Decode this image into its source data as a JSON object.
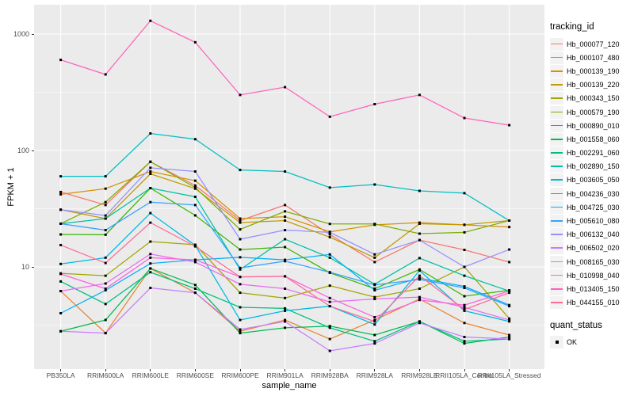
{
  "chart_data": {
    "type": "line",
    "title": "",
    "xlabel": "sample_name",
    "ylabel": "FPKM + 1",
    "y_scale": "log10",
    "ylim": [
      1.32,
      1780
    ],
    "y_ticks": [
      10,
      100,
      1000
    ],
    "y_minor_gridlines": [
      3.162,
      31.623,
      316.23
    ],
    "grid": "major-and-minor-white-on-gray",
    "legend_position": "right",
    "panel_bg": "#EBEBEB",
    "grid_color": "#FFFFFF",
    "point_shape": "small-black-square",
    "point_color": "#000000",
    "categories": [
      "PB350LA",
      "RRIM600LA",
      "RRIM600LE",
      "RRIM600SE",
      "RRIM600PE",
      "RRIM901LA",
      "RRIM928BA",
      "RRIM928LA",
      "RRIM928LE",
      "RRII105LA_Control",
      "RRII105LA_Stressed"
    ],
    "legend_title": "tracking_id",
    "point_legend_title": "quant_status",
    "point_legend_label": "OK",
    "values_note": "FPKM+1, approximate readings from log axis",
    "series": [
      {
        "name": "Hb_000077_120",
        "color": "#F8766D",
        "values": [
          44,
          34,
          80,
          50,
          25,
          34,
          19,
          11,
          17,
          14,
          11
        ]
      },
      {
        "name": "Hb_000107_480",
        "color": "#EA8331",
        "values": [
          6.2,
          2.7,
          9.7,
          6.0,
          2.8,
          3.5,
          2.4,
          3.5,
          5.3,
          3.3,
          2.6
        ]
      },
      {
        "name": "Hb_000139_190",
        "color": "#D89000",
        "values": [
          42,
          47,
          66,
          55,
          26,
          27,
          20,
          23,
          24,
          23,
          22
        ]
      },
      {
        "name": "Hb_000139_220",
        "color": "#C09B00",
        "values": [
          31,
          26,
          63,
          47,
          24,
          25,
          18,
          12,
          23.5,
          23,
          25
        ]
      },
      {
        "name": "Hb_000343_150",
        "color": "#A3A500",
        "values": [
          8.8,
          8.4,
          16.5,
          15.5,
          6.0,
          5.4,
          6.9,
          5.5,
          6.5,
          10,
          3.6
        ]
      },
      {
        "name": "Hb_000579_190",
        "color": "#7CAE00",
        "values": [
          23.5,
          36,
          80,
          48,
          21,
          30,
          23.4,
          23.4,
          19.3,
          19.8,
          25
        ]
      },
      {
        "name": "Hb_000890_010",
        "color": "#39B600",
        "values": [
          19,
          18.9,
          47.5,
          27.7,
          14.1,
          14.8,
          8.9,
          6.5,
          9.5,
          5.6,
          6.3
        ]
      },
      {
        "name": "Hb_001558_060",
        "color": "#00BB4E",
        "values": [
          2.8,
          3.5,
          9.7,
          7.0,
          2.7,
          3.0,
          3.1,
          2.6,
          3.4,
          2.2,
          2.5
        ]
      },
      {
        "name": "Hb_002291_060",
        "color": "#00BF7D",
        "values": [
          7.5,
          4.8,
          9.0,
          6.5,
          4.5,
          4.4,
          3.0,
          2.3,
          3.4,
          2.3,
          2.4
        ]
      },
      {
        "name": "Hb_002890_150",
        "color": "#00C1A3",
        "values": [
          23.5,
          26,
          47.5,
          40,
          9.5,
          17.3,
          12,
          7.1,
          11.9,
          8.4,
          6.2
        ]
      },
      {
        "name": "Hb_003605_050",
        "color": "#00BFC4",
        "values": [
          60,
          60,
          140,
          125,
          68,
          66,
          48,
          51,
          45,
          43,
          25
        ]
      },
      {
        "name": "Hb_004236_030",
        "color": "#00BAE0",
        "values": [
          10.6,
          12,
          29,
          15.3,
          3.5,
          4.2,
          4.6,
          3.2,
          9.3,
          4.2,
          3.4
        ]
      },
      {
        "name": "Hb_004725_030",
        "color": "#00B0F6",
        "values": [
          4.0,
          6.3,
          10.7,
          11.5,
          12.1,
          11.5,
          12.8,
          6.3,
          8.0,
          6.8,
          4.7
        ]
      },
      {
        "name": "Hb_005610_080",
        "color": "#35A2FF",
        "values": [
          23.5,
          20.7,
          36,
          34,
          9.8,
          11.2,
          9.0,
          7.0,
          7.8,
          6.6,
          4.6
        ]
      },
      {
        "name": "Hb_006132_040",
        "color": "#9590FF",
        "values": [
          31,
          27.6,
          71,
          66,
          17.3,
          20.7,
          19.8,
          12.8,
          17,
          10,
          14.1
        ]
      },
      {
        "name": "Hb_006502_020",
        "color": "#C77CFF",
        "values": [
          2.8,
          2.7,
          6.6,
          6.0,
          2.9,
          3.4,
          1.9,
          2.2,
          3.3,
          2.5,
          2.4
        ]
      },
      {
        "name": "Hb_008165_030",
        "color": "#E76BF3",
        "values": [
          6.2,
          7.2,
          12.9,
          11,
          7.1,
          6.5,
          5.0,
          5.3,
          5.5,
          4.5,
          3.5
        ]
      },
      {
        "name": "Hb_010998_040",
        "color": "#FA62DB",
        "values": [
          8.7,
          6.5,
          12,
          11.5,
          8.2,
          8.3,
          5.4,
          3.7,
          5.2,
          4.7,
          6.2
        ]
      },
      {
        "name": "Hb_013405_150",
        "color": "#FF62BC",
        "values": [
          600,
          450,
          1300,
          850,
          300,
          350,
          195,
          250,
          300,
          190,
          165
        ]
      },
      {
        "name": "Hb_044155_010",
        "color": "#FF6A98",
        "values": [
          15.4,
          10.8,
          24,
          15,
          8.2,
          8.3,
          4.6,
          3.4,
          8.4,
          4.3,
          6.0
        ]
      }
    ]
  }
}
